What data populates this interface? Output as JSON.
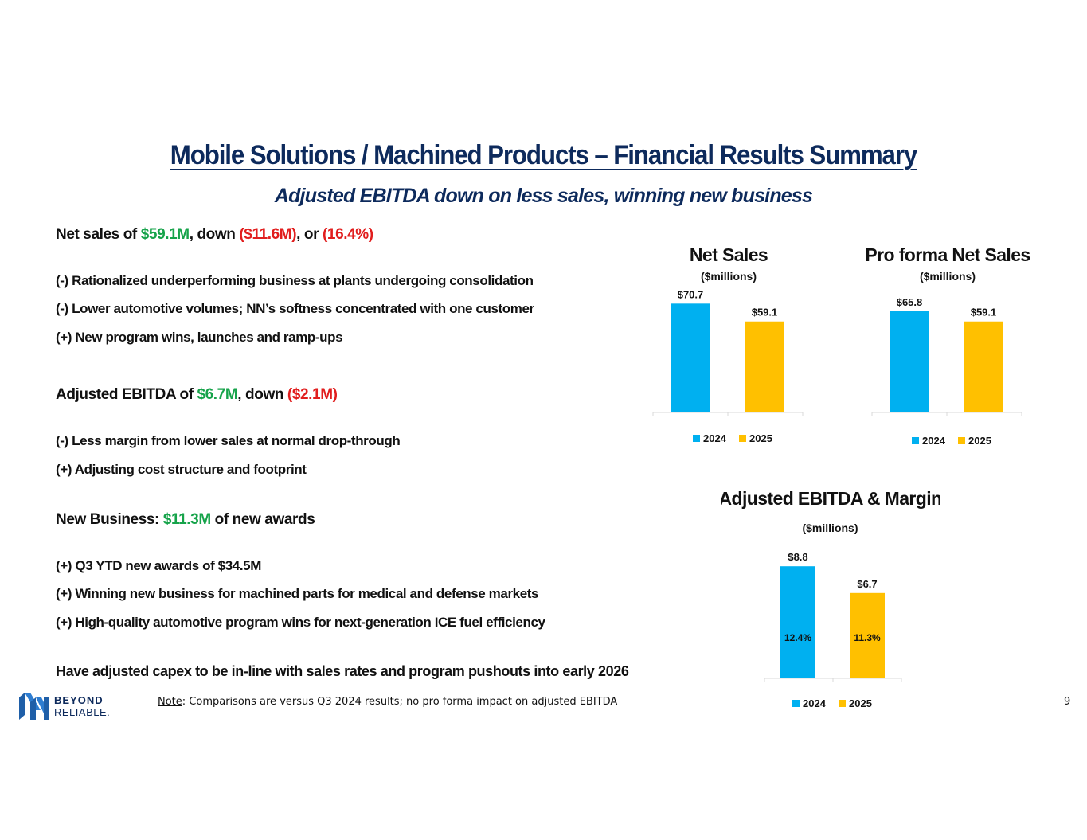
{
  "title": "Mobile Solutions / Machined Products – Financial Results Summary",
  "subtitle": "Adjusted EBITDA down on less sales, winning new business",
  "net_sales": {
    "prefix": "Net sales of ",
    "value": "$59.1M",
    "mid": ", down ",
    "change": "($11.6M)",
    "mid2": ", or ",
    "pct": "(16.4%)",
    "bullets": [
      "(-) Rationalized underperforming business at plants undergoing consolidation",
      "(-) Lower automotive volumes; NN’s softness concentrated with one customer",
      "(+) New program wins, launches and ramp-ups"
    ]
  },
  "ebitda": {
    "prefix": "Adjusted EBITDA of ",
    "value": "$6.7M",
    "mid": ", down ",
    "change": "($2.1M)",
    "bullets": [
      "(-) Less margin from lower sales at normal drop-through",
      "(+) Adjusting cost structure and footprint"
    ]
  },
  "new_business": {
    "prefix": "New Business:  ",
    "value": "$11.3M",
    "suffix": " of new awards",
    "bullets": [
      "(+) Q3 YTD new awards of $34.5M",
      "(+) Winning new business for machined parts for medical and defense markets",
      "(+) High-quality automotive program wins for next-generation ICE fuel efficiency"
    ]
  },
  "capex_note": "Have adjusted capex to be in-line with sales rates and program pushouts into early 2026",
  "footer": {
    "logo_line1": "BEYOND",
    "logo_line2": "RELIABLE.",
    "note_label": "Note",
    "note_text": ": Comparisons are versus Q3 2024 results; no pro forma impact on adjusted EBITDA",
    "page_number": "9"
  },
  "colors": {
    "navy": "#0d2a5c",
    "series_2024": "#00b0f0",
    "series_2025": "#ffc000",
    "green": "#16a34a",
    "red": "#e11d1d"
  },
  "chart_data": [
    {
      "type": "bar",
      "title": "Net Sales",
      "subtitle": "($millions)",
      "categories": [
        "2024",
        "2025"
      ],
      "values": [
        70.7,
        59.1
      ],
      "value_labels": [
        "$70.7",
        "$59.1"
      ],
      "legend": [
        "2024",
        "2025"
      ],
      "legend_position": "bottom"
    },
    {
      "type": "bar",
      "title": "Pro forma Net Sales",
      "subtitle": "($millions)",
      "categories": [
        "2024",
        "2025"
      ],
      "values": [
        65.8,
        59.1
      ],
      "value_labels": [
        "$65.8",
        "$59.1"
      ],
      "legend": [
        "2024",
        "2025"
      ],
      "legend_position": "bottom"
    },
    {
      "type": "bar",
      "title": "Adjusted EBITDA & Margin",
      "subtitle": "($millions)",
      "categories": [
        "2024",
        "2025"
      ],
      "values": [
        8.8,
        6.7
      ],
      "value_labels": [
        "$8.8",
        "$6.7"
      ],
      "margins": [
        "12.4%",
        "11.3%"
      ],
      "legend": [
        "2024",
        "2025"
      ],
      "legend_position": "bottom"
    }
  ]
}
